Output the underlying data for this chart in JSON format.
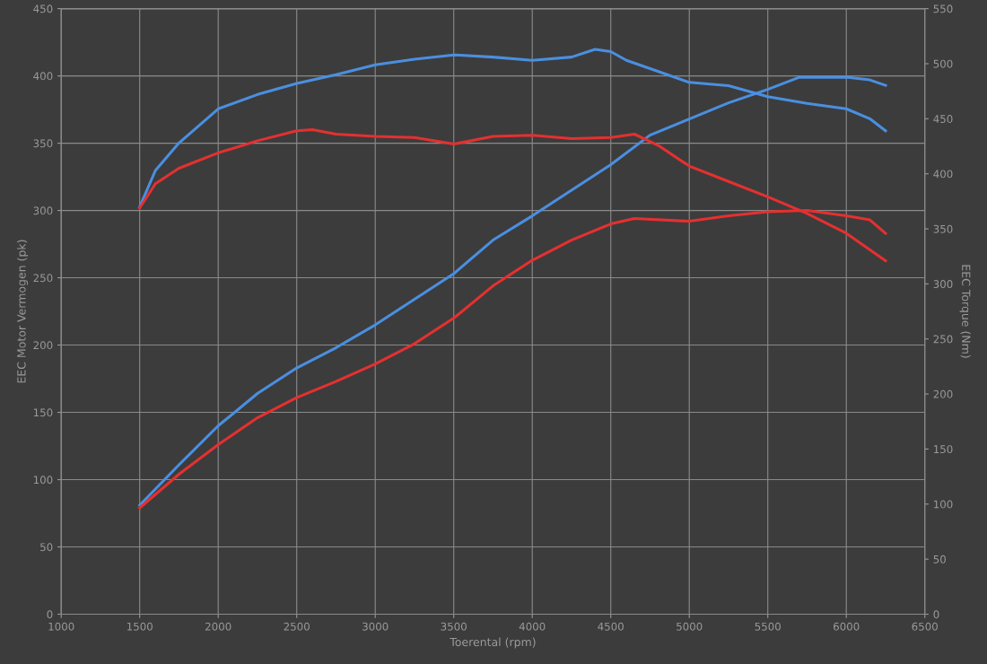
{
  "chart_data": {
    "type": "line",
    "xlabel": "Toerental (rpm)",
    "ylabel": "EEC Motor Vermogen (pk)",
    "y2label": "EEC Torque (Nm)",
    "xlim": [
      1000,
      6500
    ],
    "xticks": [
      1000,
      1500,
      2000,
      2500,
      3000,
      3500,
      4000,
      4500,
      5000,
      5500,
      6000,
      6500
    ],
    "ylim": [
      0,
      450
    ],
    "yticks": [
      0,
      50,
      100,
      150,
      200,
      250,
      300,
      350,
      400,
      450
    ],
    "y2lim": [
      0,
      550
    ],
    "y2ticks": [
      0,
      50,
      100,
      150,
      200,
      250,
      300,
      350,
      400,
      450,
      500,
      550
    ],
    "grid": true,
    "marker": "none",
    "line_style": "solid",
    "series": [
      {
        "color": "#4a8fe0",
        "axis": "y2",
        "x": [
          1500,
          1600,
          1750,
          2000,
          2250,
          2500,
          2750,
          3000,
          3250,
          3500,
          3750,
          4000,
          4250,
          4400,
          4500,
          4600,
          4800,
          5000,
          5250,
          5500,
          5750,
          6000,
          6150,
          6250
        ],
        "values": [
          370,
          403,
          428,
          459,
          472,
          482,
          490,
          499,
          504,
          508,
          506,
          503,
          506,
          513,
          511,
          503,
          493,
          483,
          480,
          470,
          464,
          459,
          450,
          439
        ]
      },
      {
        "color": "#e53030",
        "axis": "y2",
        "x": [
          1500,
          1600,
          1750,
          2000,
          2250,
          2500,
          2600,
          2750,
          3000,
          3250,
          3500,
          3750,
          4000,
          4250,
          4500,
          4650,
          4800,
          5000,
          5250,
          5500,
          5750,
          6000,
          6250
        ],
        "values": [
          369,
          391,
          405,
          419,
          430,
          439,
          440,
          436,
          434,
          433,
          427,
          434,
          435,
          432,
          433,
          436,
          426,
          407,
          393,
          379,
          364,
          346,
          321
        ]
      },
      {
        "color": "#4a8fe0",
        "x": [
          1500,
          1750,
          2000,
          2250,
          2500,
          2750,
          3000,
          3250,
          3500,
          3750,
          4000,
          4250,
          4500,
          4750,
          5000,
          5250,
          5500,
          5700,
          6000,
          6150,
          6250
        ],
        "values": [
          81,
          111,
          140,
          164,
          183,
          198,
          215,
          234,
          253,
          278,
          296,
          315,
          334,
          356,
          368,
          380,
          390,
          399,
          399,
          397,
          393
        ]
      },
      {
        "color": "#e53030",
        "x": [
          1500,
          1750,
          2000,
          2250,
          2500,
          2750,
          3000,
          3250,
          3500,
          3750,
          4000,
          4250,
          4500,
          4650,
          5000,
          5250,
          5500,
          5750,
          6000,
          6150,
          6250
        ],
        "values": [
          79,
          104,
          126,
          146,
          161,
          173,
          186,
          201,
          220,
          244,
          263,
          278,
          290,
          294,
          292,
          296,
          299,
          300,
          296,
          293,
          283
        ]
      }
    ]
  }
}
